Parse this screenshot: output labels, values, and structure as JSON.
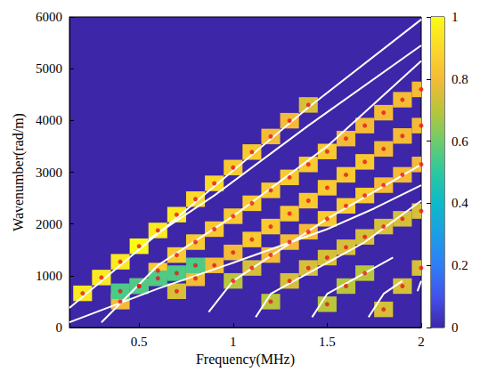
{
  "chart_data": {
    "type": "heatmap",
    "x_label": "Frequency(MHz)",
    "y_label": "Wavenumber(rad/m)",
    "xlim": [
      0.13,
      2
    ],
    "xticks": [
      0.5,
      1,
      1.5,
      2
    ],
    "ylim": [
      0,
      6000
    ],
    "yticks": [
      0,
      1000,
      2000,
      3000,
      4000,
      5000,
      6000
    ],
    "heatmap": {
      "cell_width": 0.1,
      "cell_height": 300,
      "cells": [
        [
          0.2,
          660,
          0.95
        ],
        [
          0.3,
          965,
          0.95
        ],
        [
          0.4,
          1270,
          0.95
        ],
        [
          0.5,
          1570,
          1
        ],
        [
          0.6,
          1875,
          0.95
        ],
        [
          0.7,
          2180,
          0.95
        ],
        [
          0.8,
          2480,
          0.9
        ],
        [
          0.9,
          2785,
          0.9
        ],
        [
          1.0,
          3090,
          0.85
        ],
        [
          1.1,
          3390,
          0.85
        ],
        [
          1.2,
          3690,
          0.8
        ],
        [
          1.3,
          3995,
          0.8
        ],
        [
          1.4,
          4300,
          0.75
        ],
        [
          0.4,
          500,
          0.8
        ],
        [
          0.5,
          800,
          0.85
        ],
        [
          0.6,
          1100,
          0.85
        ],
        [
          0.7,
          1400,
          0.85
        ],
        [
          0.8,
          1650,
          0.85
        ],
        [
          0.9,
          1900,
          0.85
        ],
        [
          1.0,
          2150,
          0.85
        ],
        [
          1.1,
          2400,
          0.85
        ],
        [
          1.2,
          2650,
          0.85
        ],
        [
          1.3,
          2900,
          0.85
        ],
        [
          1.4,
          3150,
          0.85
        ],
        [
          1.5,
          3400,
          0.85
        ],
        [
          1.6,
          3650,
          0.8
        ],
        [
          1.7,
          3900,
          0.8
        ],
        [
          1.8,
          4150,
          0.8
        ],
        [
          1.9,
          4400,
          0.8
        ],
        [
          2.0,
          4600,
          0.8
        ],
        [
          0.7,
          700,
          0.75
        ],
        [
          0.8,
          950,
          0.8
        ],
        [
          0.9,
          1200,
          0.8
        ],
        [
          1.0,
          1450,
          0.8
        ],
        [
          1.1,
          1700,
          0.85
        ],
        [
          1.2,
          1950,
          0.85
        ],
        [
          1.3,
          2200,
          0.85
        ],
        [
          1.4,
          2450,
          0.85
        ],
        [
          1.5,
          2700,
          0.85
        ],
        [
          1.6,
          2950,
          0.85
        ],
        [
          1.7,
          3200,
          0.85
        ],
        [
          1.8,
          3450,
          0.8
        ],
        [
          1.9,
          3700,
          0.8
        ],
        [
          2.0,
          3900,
          0.8
        ],
        [
          1.0,
          900,
          0.7
        ],
        [
          1.1,
          1150,
          0.75
        ],
        [
          1.2,
          1400,
          0.8
        ],
        [
          1.3,
          1650,
          0.8
        ],
        [
          1.4,
          1850,
          0.8
        ],
        [
          1.5,
          2100,
          0.85
        ],
        [
          1.6,
          2350,
          0.85
        ],
        [
          1.7,
          2550,
          0.85
        ],
        [
          1.8,
          2750,
          0.8
        ],
        [
          1.9,
          2950,
          0.8
        ],
        [
          2.0,
          3150,
          0.8
        ],
        [
          1.2,
          500,
          0.7
        ],
        [
          1.3,
          900,
          0.75
        ],
        [
          1.4,
          1150,
          0.75
        ],
        [
          1.5,
          1350,
          0.75
        ],
        [
          1.6,
          1550,
          0.75
        ],
        [
          1.7,
          1750,
          0.75
        ],
        [
          1.8,
          1950,
          0.75
        ],
        [
          1.9,
          2100,
          0.75
        ],
        [
          2.0,
          2250,
          0.75
        ],
        [
          1.5,
          450,
          0.7
        ],
        [
          1.6,
          800,
          0.7
        ],
        [
          1.7,
          1050,
          0.7
        ],
        [
          1.8,
          350,
          0.75
        ],
        [
          1.9,
          800,
          0.75
        ],
        [
          2.0,
          1150,
          0.75
        ],
        [
          0.4,
          700,
          0.55
        ],
        [
          0.5,
          800,
          0.55
        ],
        [
          0.6,
          950,
          0.55
        ],
        [
          0.7,
          1050,
          0.55
        ],
        [
          0.8,
          1200,
          0.55
        ]
      ]
    },
    "colorbar": {
      "range": [
        0,
        1
      ],
      "ticks": [
        0,
        0.2,
        0.4,
        0.6,
        0.8,
        1
      ]
    },
    "series": [
      {
        "type": "line",
        "color": "#ffffff",
        "line_style": "solid",
        "values": [
          [
            0.13,
            380
          ],
          [
            1.4,
            4250
          ],
          [
            2,
            5950
          ]
        ]
      },
      {
        "type": "line",
        "color": "#ffffff",
        "line_style": "solid",
        "values": [
          [
            0.55,
            1700
          ],
          [
            0.9,
            2550
          ],
          [
            1.4,
            3900
          ],
          [
            2,
            5450
          ]
        ]
      },
      {
        "type": "line",
        "color": "#ffffff",
        "line_style": "solid",
        "values": [
          [
            0.3,
            100
          ],
          [
            0.6,
            1200
          ],
          [
            1,
            2150
          ],
          [
            1.5,
            3500
          ],
          [
            2,
            5150
          ]
        ]
      },
      {
        "type": "line",
        "color": "#ffffff",
        "line_style": "solid",
        "values": [
          [
            0.87,
            300
          ],
          [
            1.0,
            900
          ],
          [
            1.5,
            2100
          ],
          [
            2,
            3150
          ]
        ]
      },
      {
        "type": "line",
        "color": "#ffffff",
        "line_style": "solid",
        "values": [
          [
            0.13,
            100
          ],
          [
            0.6,
            750
          ],
          [
            1.0,
            1250
          ],
          [
            1.5,
            1900
          ],
          [
            1.75,
            2300
          ],
          [
            2,
            2750
          ]
        ]
      },
      {
        "type": "line",
        "color": "#ffffff",
        "line_style": "solid",
        "values": [
          [
            1.12,
            200
          ],
          [
            1.2,
            650
          ],
          [
            1.4,
            1050
          ],
          [
            1.7,
            1650
          ],
          [
            2,
            2450
          ]
        ]
      },
      {
        "type": "line",
        "color": "#ffffff",
        "line_style": "solid",
        "values": [
          [
            1.42,
            200
          ],
          [
            1.5,
            650
          ],
          [
            1.7,
            1050
          ],
          [
            1.85,
            1350
          ]
        ]
      },
      {
        "type": "line",
        "color": "#ffffff",
        "line_style": "solid",
        "values": [
          [
            1.72,
            200
          ],
          [
            1.8,
            650
          ],
          [
            1.9,
            900
          ]
        ]
      },
      {
        "type": "line",
        "color": "#ffffff",
        "line_style": "solid",
        "values": [
          [
            1.98,
            700
          ],
          [
            2,
            900
          ]
        ]
      },
      {
        "type": "scatter",
        "color": "#e8161b",
        "marker": "circle",
        "values": [
          [
            0.2,
            660
          ],
          [
            0.3,
            965
          ],
          [
            0.4,
            1270
          ],
          [
            0.5,
            1570
          ],
          [
            0.6,
            1875
          ],
          [
            0.7,
            2180
          ],
          [
            0.8,
            2480
          ],
          [
            0.9,
            2785
          ],
          [
            1.0,
            3090
          ],
          [
            1.1,
            3390
          ],
          [
            1.2,
            3690
          ],
          [
            1.3,
            3995
          ],
          [
            1.4,
            4300
          ],
          [
            0.4,
            500
          ],
          [
            0.5,
            800
          ],
          [
            0.6,
            1100
          ],
          [
            0.7,
            1400
          ],
          [
            0.8,
            1650
          ],
          [
            0.9,
            1900
          ],
          [
            1.0,
            2150
          ],
          [
            1.1,
            2400
          ],
          [
            1.2,
            2650
          ],
          [
            1.3,
            2900
          ],
          [
            1.4,
            3150
          ],
          [
            1.5,
            3400
          ],
          [
            1.6,
            3650
          ],
          [
            1.7,
            3900
          ],
          [
            1.8,
            4150
          ],
          [
            1.9,
            4400
          ],
          [
            2.0,
            4600
          ],
          [
            0.7,
            700
          ],
          [
            0.8,
            950
          ],
          [
            0.9,
            1200
          ],
          [
            1.0,
            1450
          ],
          [
            1.1,
            1700
          ],
          [
            1.2,
            1950
          ],
          [
            1.3,
            2200
          ],
          [
            1.4,
            2450
          ],
          [
            1.5,
            2700
          ],
          [
            1.6,
            2950
          ],
          [
            1.7,
            3200
          ],
          [
            1.8,
            3450
          ],
          [
            1.9,
            3700
          ],
          [
            2.0,
            3900
          ],
          [
            1.0,
            900
          ],
          [
            1.1,
            1150
          ],
          [
            1.2,
            1400
          ],
          [
            1.3,
            1650
          ],
          [
            1.4,
            1850
          ],
          [
            1.5,
            2100
          ],
          [
            1.6,
            2350
          ],
          [
            1.7,
            2550
          ],
          [
            1.8,
            2750
          ],
          [
            1.9,
            2950
          ],
          [
            2.0,
            3150
          ],
          [
            1.2,
            500
          ],
          [
            1.3,
            900
          ],
          [
            1.4,
            1150
          ],
          [
            1.5,
            1350
          ],
          [
            1.6,
            1550
          ],
          [
            1.7,
            1750
          ],
          [
            1.8,
            1950
          ],
          [
            1.9,
            2100
          ],
          [
            2.0,
            2250
          ],
          [
            1.5,
            450
          ],
          [
            1.6,
            800
          ],
          [
            1.7,
            1050
          ],
          [
            1.8,
            350
          ],
          [
            1.9,
            800
          ],
          [
            2.0,
            1150
          ],
          [
            0.4,
            700
          ],
          [
            0.5,
            800
          ],
          [
            0.6,
            950
          ],
          [
            0.7,
            1050
          ],
          [
            0.8,
            1200
          ]
        ]
      }
    ]
  }
}
